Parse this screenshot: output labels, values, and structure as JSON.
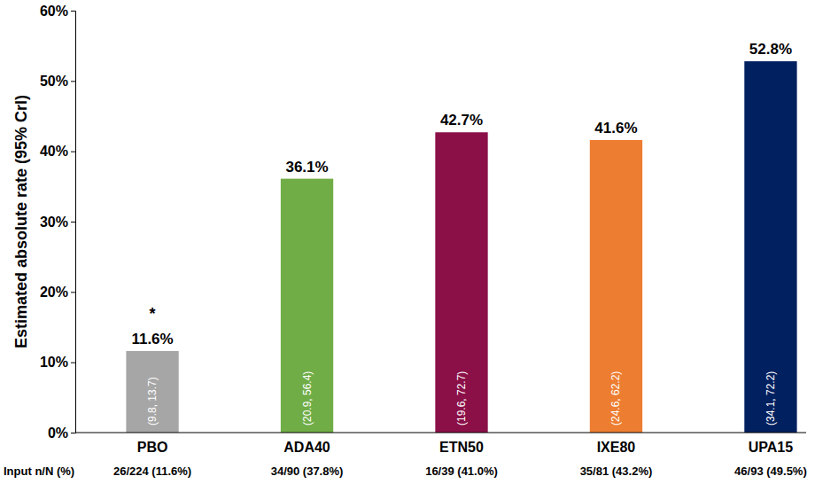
{
  "chart_data": {
    "type": "bar",
    "y_label": "Estimated absolute rate (95% CrI)",
    "categories": [
      "PBO",
      "ADA40",
      "ETN50",
      "IXE80",
      "UPA15"
    ],
    "values": [
      11.6,
      36.1,
      42.7,
      41.6,
      52.8
    ],
    "value_labels": [
      "11.6%",
      "36.1%",
      "42.7%",
      "41.6%",
      "52.8%"
    ],
    "data_labels": true,
    "colors": [
      "#a6a6a6",
      "#70ad47",
      "#8b1048",
      "#ed7d31",
      "#002060"
    ],
    "interval_labels": [
      "(9.8, 13.7)",
      "(20.9, 56.4)",
      "(19.6, 72.7)",
      "(24.6, 62.2)",
      "(34.1, 72.2)"
    ],
    "input_title": "Input n/N (%)",
    "input_labels": [
      "26/224 (11.6%)",
      "34/90 (37.8%)",
      "16/39 (41.0%)",
      "35/81 (43.2%)",
      "46/93 (49.5%)"
    ],
    "annotations": [
      {
        "text": "*",
        "category": 0
      }
    ],
    "ylim": [
      0,
      60
    ],
    "yticks": [
      {
        "value": 0,
        "label": "0%"
      },
      {
        "value": 10,
        "label": "10%"
      },
      {
        "value": 20,
        "label": "20%"
      },
      {
        "value": 30,
        "label": "30%"
      },
      {
        "value": 40,
        "label": "40%"
      },
      {
        "value": 50,
        "label": "50%"
      },
      {
        "value": 60,
        "label": "60%"
      }
    ],
    "grid": false
  }
}
